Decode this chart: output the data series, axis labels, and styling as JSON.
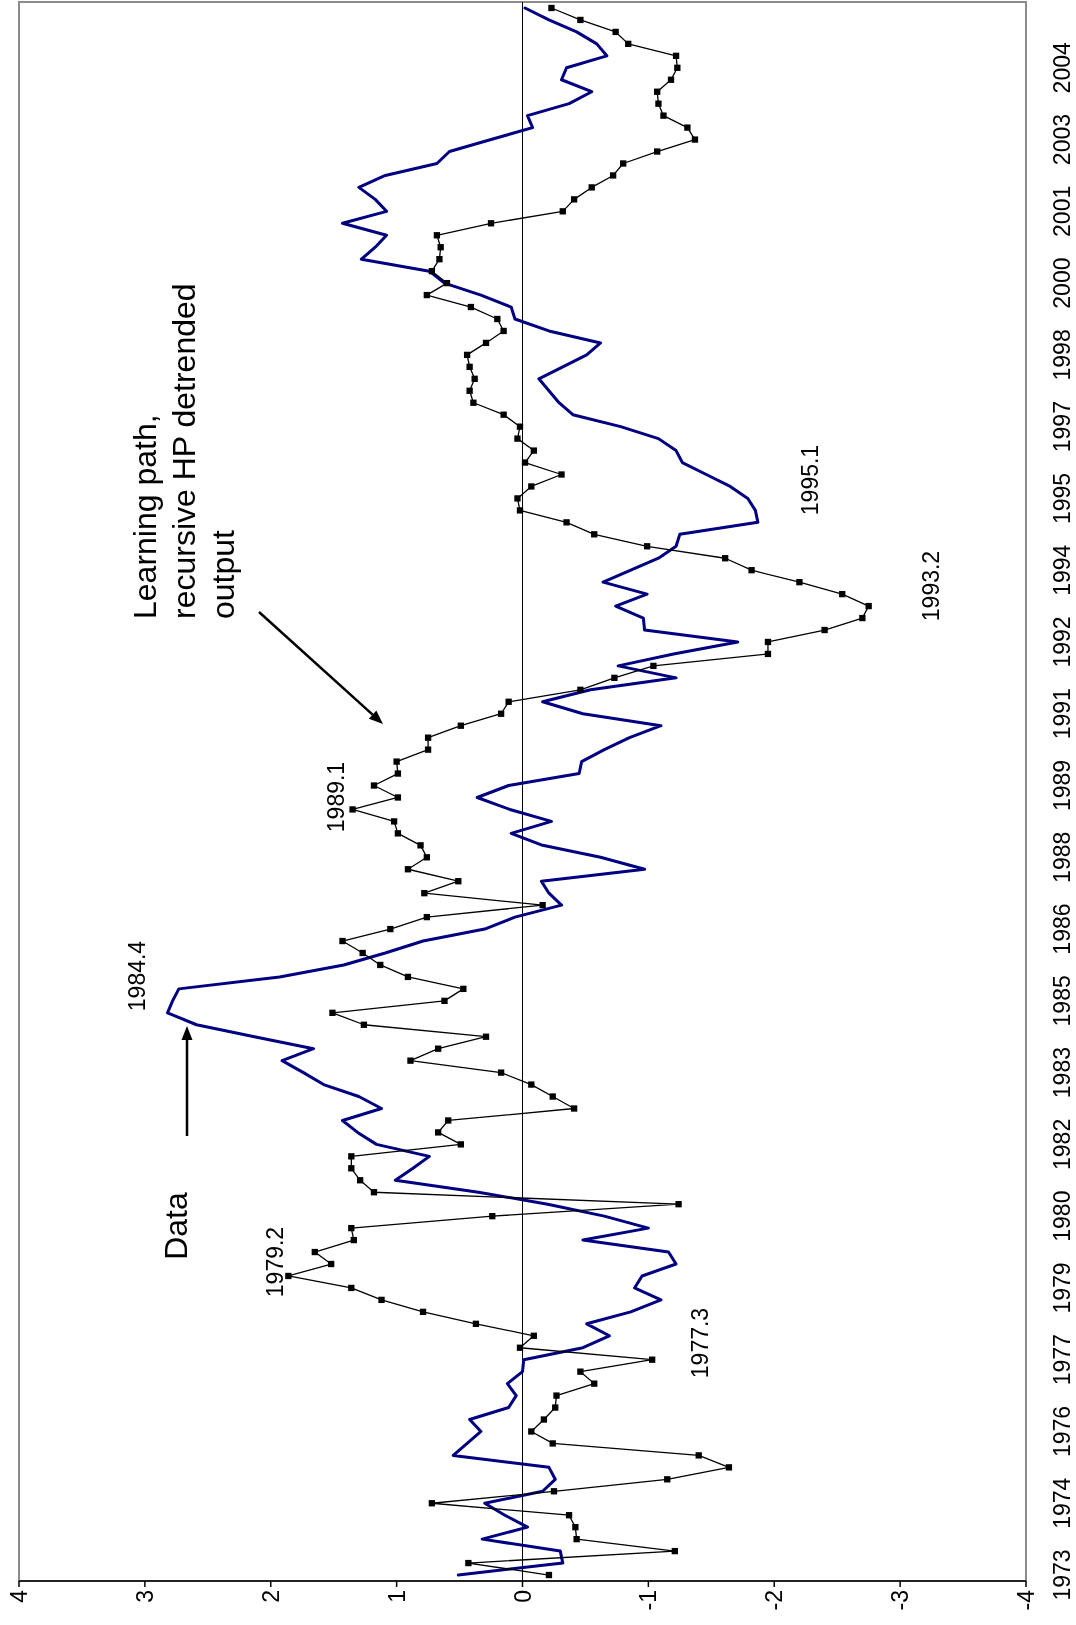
{
  "chart_data": {
    "type": "line",
    "orientation": "horizontal",
    "categories": [
      null,
      null,
      null,
      null,
      null,
      "2004",
      null,
      null,
      null,
      null,
      null,
      "2003",
      null,
      null,
      null,
      null,
      null,
      "2001",
      null,
      null,
      null,
      null,
      null,
      "2000",
      null,
      null,
      null,
      null,
      null,
      "1998",
      null,
      null,
      null,
      null,
      null,
      "1997",
      null,
      null,
      null,
      null,
      null,
      "1995",
      null,
      null,
      null,
      null,
      null,
      "1994",
      null,
      null,
      null,
      null,
      null,
      "1992",
      null,
      null,
      null,
      null,
      null,
      "1991",
      null,
      null,
      null,
      null,
      null,
      "1989",
      null,
      null,
      null,
      null,
      null,
      "1988",
      null,
      null,
      null,
      null,
      null,
      "1986",
      null,
      null,
      null,
      null,
      null,
      "1985",
      null,
      null,
      null,
      null,
      null,
      "1983",
      null,
      null,
      null,
      null,
      null,
      "1982",
      null,
      null,
      null,
      null,
      null,
      "1980",
      null,
      null,
      null,
      null,
      null,
      "1979",
      null,
      null,
      null,
      null,
      null,
      "1977",
      null,
      null,
      null,
      null,
      null,
      "1976",
      null,
      null,
      null,
      null,
      null,
      "1974",
      null,
      null,
      null,
      null,
      null,
      "1973"
    ],
    "series": [
      {
        "color": "#000080",
        "marker": "none",
        "values": [
          -0.02,
          -0.21,
          -0.43,
          -0.59,
          -0.67,
          -0.35,
          -0.31,
          -0.55,
          -0.37,
          -0.04,
          -0.08,
          0.25,
          0.58,
          0.68,
          1.09,
          1.3,
          1.17,
          1.08,
          1.43,
          1.08,
          1.17,
          1.28,
          0.74,
          0.62,
          0.33,
          0.09,
          0.06,
          -0.21,
          -0.62,
          -0.51,
          -0.32,
          -0.13,
          -0.21,
          -0.29,
          -0.4,
          -0.78,
          -1.08,
          -1.22,
          -1.27,
          -1.46,
          -1.65,
          -1.79,
          -1.85,
          -1.87,
          -1.25,
          -1.22,
          -1.08,
          -0.86,
          -0.64,
          -0.99,
          -0.74,
          -0.96,
          -0.97,
          -1.71,
          -1.2,
          -0.76,
          -1.22,
          -0.54,
          -0.16,
          -0.48,
          -1.1,
          -0.85,
          -0.65,
          -0.47,
          -0.45,
          0.11,
          0.36,
          0.1,
          -0.23,
          0.09,
          -0.16,
          -0.62,
          -0.97,
          -0.15,
          -0.21,
          -0.31,
          0.06,
          0.3,
          0.79,
          1.09,
          1.42,
          1.93,
          2.73,
          2.78,
          2.82,
          2.59,
          2.13,
          1.66,
          1.91,
          1.74,
          1.58,
          1.3,
          1.12,
          1.43,
          1.31,
          1.16,
          0.74,
          0.87,
          1.01,
          0.35,
          -0.2,
          -0.65,
          -1.0,
          -0.48,
          -1.16,
          -1.22,
          -0.95,
          -0.89,
          -1.1,
          -0.86,
          -0.51,
          -0.69,
          -0.48,
          -0.01,
          0.0,
          0.12,
          0.05,
          0.11,
          0.42,
          0.33,
          0.44,
          0.55,
          -0.21,
          -0.26,
          -0.16,
          0.3,
          0.14,
          -0.04,
          0.32,
          -0.3,
          -0.32,
          0.51
        ]
      },
      {
        "name": "Learning path, recursive HP detrended output",
        "color": "#000000",
        "marker": "square",
        "values": [
          -0.23,
          -0.46,
          -0.74,
          -0.84,
          -1.22,
          -1.23,
          -1.18,
          -1.07,
          -1.08,
          -1.12,
          -1.31,
          -1.37,
          -1.07,
          -0.8,
          -0.72,
          -0.55,
          -0.41,
          -0.32,
          0.25,
          0.68,
          0.65,
          0.66,
          0.72,
          0.6,
          0.76,
          0.41,
          0.2,
          0.15,
          0.29,
          0.44,
          0.42,
          0.38,
          0.42,
          0.39,
          0.15,
          0.02,
          0.04,
          -0.09,
          -0.02,
          -0.31,
          -0.07,
          0.04,
          0.02,
          -0.35,
          -0.57,
          -0.99,
          -1.61,
          -1.82,
          -2.2,
          -2.54,
          -2.75,
          -2.7,
          -2.4,
          -1.95,
          -1.95,
          -1.04,
          -0.73,
          -0.46,
          0.11,
          0.17,
          0.49,
          0.75,
          0.75,
          1.0,
          0.99,
          1.18,
          0.99,
          1.35,
          1.02,
          0.99,
          0.81,
          0.76,
          0.91,
          0.51,
          0.78,
          -0.16,
          0.76,
          1.05,
          1.43,
          1.27,
          1.13,
          0.91,
          0.47,
          0.62,
          1.51,
          1.26,
          0.29,
          0.67,
          0.89,
          0.17,
          -0.07,
          -0.24,
          -0.41,
          0.59,
          0.67,
          0.49,
          1.36,
          1.36,
          1.29,
          1.18,
          -1.24,
          0.24,
          1.36,
          1.34,
          1.65,
          1.52,
          1.86,
          1.36,
          1.12,
          0.79,
          0.37,
          -0.09,
          0.02,
          -1.03,
          -0.46,
          -0.57,
          -0.27,
          -0.26,
          -0.17,
          -0.07,
          -0.24,
          -1.4,
          -1.64,
          -1.15,
          -0.25,
          0.72,
          -0.37,
          -0.42,
          -0.43,
          -1.21,
          0.43,
          -0.21
        ]
      }
    ],
    "xlim": [
      4,
      -4
    ],
    "xticks": [
      4,
      3,
      2,
      1,
      0,
      -1,
      -2,
      -3,
      -4
    ],
    "ref_lines": [
      {
        "axis": "x",
        "value": 0
      }
    ],
    "annotations": [
      "1979.2",
      "1977.3",
      "1984.4",
      "1989.1",
      "1993.2",
      "1995.1",
      "Data"
    ]
  }
}
